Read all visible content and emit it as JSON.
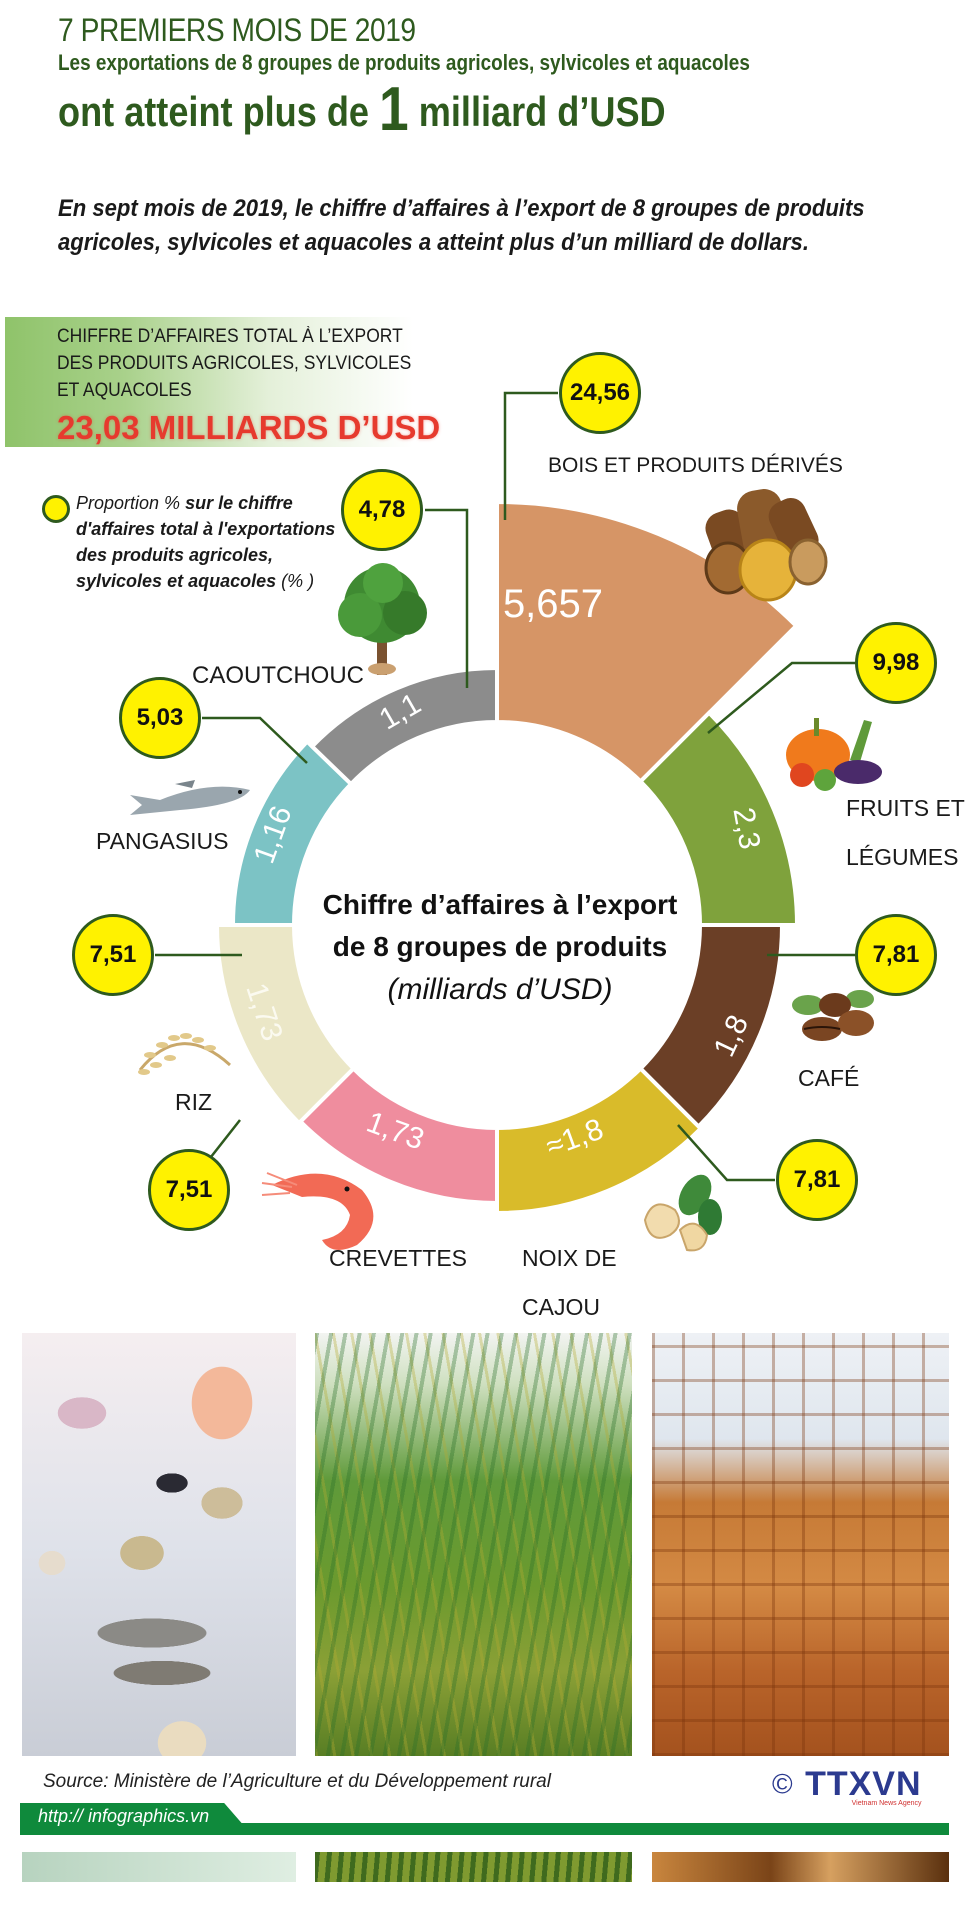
{
  "header": {
    "kicker": "7 PREMIERS MOIS DE 2019",
    "subtitle": "Les exportations de 8 groupes de produits agricoles, sylvicoles et aquacoles",
    "headline_pre": "ont atteint plus de ",
    "headline_num": "1",
    "headline_post": " milliard d’USD"
  },
  "intro": "En sept mois de 2019, le chiffre d’affaires à l’export de  8 groupes de produits agricoles, sylvicoles et aquacoles a atteint plus d’un milliard de dollars.",
  "total": {
    "label_lines": [
      "CHIFFRE D’AFFAIRES TOTAL À  L’EXPORT",
      "DES PRODUITS AGRICOLES, SYLVICOLES",
      "ET AQUACOLES"
    ],
    "value": "23,03 MILLIARDS D’USD"
  },
  "legend": {
    "text_pre": "Proportion % ",
    "text_bold": " sur le chiffre d'affaires total à l'exportations des produits agricoles, sylvicoles et aquacoles",
    "text_post": " (% )"
  },
  "center": {
    "line1": "Chiffre d’affaires à l’export",
    "line2": "de 8 groupes de produits",
    "line3": "(milliards d’USD)"
  },
  "chart_data": {
    "type": "pie",
    "subtype": "nightingale-donut",
    "title": "Chiffre d’affaires à l’export de 8 groupes de produits",
    "unit": "milliards d’USD",
    "total": "23,03 milliards d’USD",
    "categories": [
      "BOIS ET PRODUITS DÉRIVÉS",
      "FRUITS ET LÉGUMES",
      "CAFÉ",
      "NOIX DE CAJOU",
      "CREVETTES",
      "RIZ",
      "PANGASIUS",
      "CAOUTCHOUC"
    ],
    "values": [
      5.657,
      2.3,
      1.8,
      1.8,
      1.73,
      1.73,
      1.16,
      1.1
    ],
    "value_labels": [
      "5,657",
      "2,3",
      "1,8",
      "≈1,8",
      "1,73",
      "1,73",
      "1,16",
      "1,1"
    ],
    "share_pct": [
      24.56,
      9.98,
      7.81,
      7.81,
      7.51,
      7.51,
      5.03,
      4.78
    ],
    "share_labels": [
      "24,56",
      "9,98",
      "7,81",
      "7,81",
      "7,51",
      "7,51",
      "5,03",
      "4,78"
    ],
    "colors": [
      "#d69566",
      "#7fa23c",
      "#6b3f26",
      "#d9bb2a",
      "#ef8d9e",
      "#ebe7c7",
      "#7cc3c5",
      "#8c8c8c"
    ]
  },
  "segments": [
    {
      "name": "BOIS ET PRODUITS DÉRIVÉS",
      "value": "5,657",
      "pct": "24,56",
      "color": "#d69566",
      "a0": 0,
      "a1": 45,
      "r": 423
    },
    {
      "name": "FRUITS ET LÉGUMES",
      "value": "2,3",
      "pct": "9,98",
      "color": "#7fa23c",
      "a0": 45,
      "a1": 90,
      "r": 300
    },
    {
      "name": "CAFÉ",
      "value": "1,8",
      "pct": "7,81",
      "color": "#6b3f26",
      "a0": 90,
      "a1": 135,
      "r": 285
    },
    {
      "name": "NOIX DE CAJOU",
      "value": "≈1,8",
      "pct": "7,81",
      "color": "#d9bb2a",
      "a0": 135,
      "a1": 180,
      "r": 288
    },
    {
      "name": "CREVETTES",
      "value": "1,73",
      "pct": "7,51",
      "color": "#ef8d9e",
      "a0": 180,
      "a1": 225,
      "r": 278
    },
    {
      "name": "RIZ",
      "value": "1,73",
      "pct": "7,51",
      "color": "#ebe7c7",
      "a0": 225,
      "a1": 270,
      "r": 280
    },
    {
      "name": "PANGASIUS",
      "value": "1,16",
      "pct": "5,03",
      "color": "#7cc3c5",
      "a0": 270,
      "a1": 314,
      "r": 264
    },
    {
      "name": "CAOUTCHOUC",
      "value": "1,1",
      "pct": "4,78",
      "color": "#8c8c8c",
      "a0": 314,
      "a1": 360,
      "r": 257
    }
  ],
  "labels": {
    "bois": "BOIS ET PRODUITS DÉRIVÉS",
    "fruits_1": "FRUITS ET",
    "fruits_2": "LÉGUMES",
    "cafe": "CAFÉ",
    "cajou_1": "NOIX DE",
    "cajou_2": "CAJOU",
    "crevettes": "CREVETTES",
    "riz": "RIZ",
    "pangasius": "PANGASIUS",
    "caoutchouc": "CAOUTCHOUC"
  },
  "icons": {
    "bois": "logs-icon",
    "fruits": "vegetables-icon",
    "cafe": "coffee-beans-icon",
    "cajou": "cashew-icon",
    "crevettes": "shrimp-icon",
    "riz": "rice-ear-icon",
    "pangasius": "fish-icon",
    "caoutchouc": "tree-icon"
  },
  "footer": {
    "source": "Source: Ministère de l’Agriculture et du Développement rural",
    "url": "http:// infographics.vn",
    "logo_text": "TTXVN",
    "logo_copyright": "©",
    "logo_sub": "Vietnam News Agency"
  },
  "colors": {
    "title_green": "#2e5a1e",
    "total_red": "#e63a2e",
    "bubble_yellow": "#fff200",
    "footer_green": "#0f8a3c",
    "logo_blue": "#2b3a8f"
  }
}
